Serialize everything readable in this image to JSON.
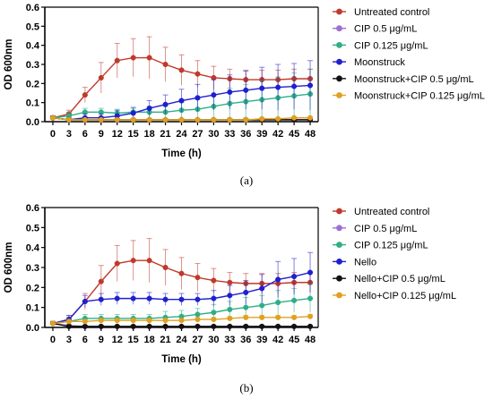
{
  "colors": {
    "untreated": "#c0392b",
    "cip05": "#a070d0",
    "cip0125": "#2fae86",
    "phage": "#1f1fd0",
    "phage_cip05": "#111111",
    "phage_cip0125": "#e0a020"
  },
  "chart_data": [
    {
      "type": "line",
      "panel_label": "(a)",
      "xlabel": "Time (h)",
      "ylabel": "OD 600nm",
      "x": [
        0,
        3,
        6,
        9,
        12,
        15,
        18,
        21,
        24,
        27,
        30,
        33,
        36,
        39,
        42,
        45,
        48
      ],
      "xlim": [
        -1.5,
        49.5
      ],
      "ylim": [
        0,
        0.6
      ],
      "yticks": [
        0,
        0.1,
        0.2,
        0.3,
        0.4,
        0.5,
        0.6
      ],
      "ytick_labels": [
        "0.0",
        "0.1",
        "0.2",
        "0.3",
        "0.4",
        "0.5",
        "0.6"
      ],
      "grid": false,
      "legend": "right",
      "series": [
        {
          "name": "Untreated control",
          "color_key": "untreated",
          "values": [
            0.02,
            0.04,
            0.14,
            0.23,
            0.32,
            0.335,
            0.335,
            0.3,
            0.27,
            0.25,
            0.23,
            0.225,
            0.22,
            0.22,
            0.22,
            0.225,
            0.225
          ],
          "errors": [
            0.01,
            0.02,
            0.04,
            0.08,
            0.09,
            0.1,
            0.11,
            0.09,
            0.08,
            0.07,
            0.06,
            0.05,
            0.05,
            0.05,
            0.05,
            0.05,
            0.05
          ]
        },
        {
          "name": "CIP 0.5 μg/mL",
          "color_key": "cip05",
          "values": [
            0.02,
            0.01,
            0.01,
            0.01,
            0.01,
            0.01,
            0.01,
            0.01,
            0.01,
            0.01,
            0.01,
            0.01,
            0.01,
            0.01,
            0.01,
            0.01,
            0.01
          ],
          "errors": [
            0.005,
            0.005,
            0.005,
            0.005,
            0.005,
            0.005,
            0.005,
            0.005,
            0.005,
            0.005,
            0.005,
            0.005,
            0.005,
            0.005,
            0.005,
            0.005,
            0.005
          ]
        },
        {
          "name": "CIP 0.125 μg/mL",
          "color_key": "cip0125",
          "values": [
            0.02,
            0.03,
            0.05,
            0.05,
            0.045,
            0.05,
            0.05,
            0.05,
            0.06,
            0.065,
            0.08,
            0.095,
            0.105,
            0.115,
            0.125,
            0.135,
            0.145
          ],
          "errors": [
            0.01,
            0.02,
            0.02,
            0.02,
            0.02,
            0.02,
            0.03,
            0.03,
            0.04,
            0.05,
            0.06,
            0.08,
            0.09,
            0.1,
            0.11,
            0.12,
            0.13
          ]
        },
        {
          "name": "Moonstruck",
          "color_key": "phage",
          "values": [
            0.02,
            0.01,
            0.02,
            0.02,
            0.03,
            0.045,
            0.07,
            0.09,
            0.11,
            0.125,
            0.14,
            0.155,
            0.165,
            0.175,
            0.18,
            0.185,
            0.19
          ],
          "errors": [
            0.01,
            0.01,
            0.02,
            0.02,
            0.03,
            0.03,
            0.04,
            0.05,
            0.06,
            0.07,
            0.08,
            0.09,
            0.1,
            0.11,
            0.12,
            0.12,
            0.13
          ]
        },
        {
          "name": "Moonstruck+CIP 0.5 μg/mL",
          "color_key": "phage_cip05",
          "values": [
            0.02,
            0.01,
            0.01,
            0.01,
            0.01,
            0.01,
            0.01,
            0.01,
            0.01,
            0.01,
            0.01,
            0.01,
            0.01,
            0.01,
            0.01,
            0.01,
            0.01
          ],
          "errors": [
            0.005,
            0.005,
            0.005,
            0.005,
            0.005,
            0.005,
            0.005,
            0.005,
            0.005,
            0.005,
            0.005,
            0.005,
            0.005,
            0.005,
            0.005,
            0.005,
            0.005
          ]
        },
        {
          "name": "Moonstruck+CIP 0.125 μg/mL",
          "color_key": "phage_cip0125",
          "values": [
            0.02,
            0.01,
            0.01,
            0.01,
            0.01,
            0.01,
            0.01,
            0.01,
            0.01,
            0.01,
            0.01,
            0.01,
            0.01,
            0.015,
            0.015,
            0.02,
            0.02
          ],
          "errors": [
            0.005,
            0.005,
            0.005,
            0.005,
            0.005,
            0.005,
            0.005,
            0.005,
            0.005,
            0.005,
            0.005,
            0.005,
            0.005,
            0.005,
            0.005,
            0.005,
            0.005
          ]
        }
      ]
    },
    {
      "type": "line",
      "panel_label": "(b)",
      "xlabel": "Time (h)",
      "ylabel": "OD 600nm",
      "x": [
        0,
        3,
        6,
        9,
        12,
        15,
        18,
        21,
        24,
        27,
        30,
        33,
        36,
        39,
        42,
        45,
        48
      ],
      "xlim": [
        -1.5,
        49.5
      ],
      "ylim": [
        0,
        0.6
      ],
      "yticks": [
        0,
        0.1,
        0.2,
        0.3,
        0.4,
        0.5,
        0.6
      ],
      "ytick_labels": [
        "0.0",
        "0.1",
        "0.2",
        "0.3",
        "0.4",
        "0.5",
        "0.6"
      ],
      "grid": false,
      "legend": "right",
      "series": [
        {
          "name": "Untreated control",
          "color_key": "untreated",
          "values": [
            0.02,
            0.04,
            0.13,
            0.23,
            0.32,
            0.335,
            0.335,
            0.3,
            0.27,
            0.25,
            0.235,
            0.225,
            0.22,
            0.22,
            0.22,
            0.225,
            0.225
          ],
          "errors": [
            0.01,
            0.02,
            0.04,
            0.08,
            0.09,
            0.1,
            0.11,
            0.09,
            0.08,
            0.07,
            0.06,
            0.05,
            0.05,
            0.05,
            0.05,
            0.05,
            0.05
          ]
        },
        {
          "name": "CIP 0.5 μg/mL",
          "color_key": "cip05",
          "values": [
            0.02,
            0.01,
            0.005,
            0.005,
            0.005,
            0.005,
            0.005,
            0.005,
            0.005,
            0.005,
            0.005,
            0.005,
            0.005,
            0.005,
            0.005,
            0.005,
            0.005
          ],
          "errors": [
            0.005,
            0.005,
            0.005,
            0.005,
            0.005,
            0.005,
            0.005,
            0.005,
            0.005,
            0.005,
            0.005,
            0.005,
            0.005,
            0.005,
            0.005,
            0.005,
            0.005
          ]
        },
        {
          "name": "CIP 0.125 μg/mL",
          "color_key": "cip0125",
          "values": [
            0.02,
            0.03,
            0.045,
            0.045,
            0.045,
            0.045,
            0.045,
            0.05,
            0.055,
            0.065,
            0.075,
            0.09,
            0.1,
            0.11,
            0.125,
            0.135,
            0.145
          ],
          "errors": [
            0.01,
            0.02,
            0.02,
            0.02,
            0.02,
            0.02,
            0.02,
            0.03,
            0.03,
            0.03,
            0.04,
            0.04,
            0.05,
            0.05,
            0.06,
            0.06,
            0.07
          ]
        },
        {
          "name": "Nello",
          "color_key": "phage",
          "values": [
            0.02,
            0.04,
            0.13,
            0.14,
            0.145,
            0.145,
            0.145,
            0.14,
            0.14,
            0.14,
            0.145,
            0.16,
            0.175,
            0.195,
            0.24,
            0.255,
            0.275
          ],
          "errors": [
            0.01,
            0.02,
            0.03,
            0.03,
            0.03,
            0.03,
            0.03,
            0.03,
            0.03,
            0.03,
            0.04,
            0.05,
            0.06,
            0.07,
            0.09,
            0.09,
            0.1
          ]
        },
        {
          "name": "Nello+CIP 0.5 μg/mL",
          "color_key": "phage_cip05",
          "values": [
            0.02,
            0.005,
            0.005,
            0.005,
            0.005,
            0.005,
            0.005,
            0.005,
            0.005,
            0.005,
            0.005,
            0.005,
            0.005,
            0.005,
            0.005,
            0.005,
            0.005
          ],
          "errors": [
            0.005,
            0.005,
            0.005,
            0.005,
            0.005,
            0.005,
            0.005,
            0.005,
            0.005,
            0.005,
            0.005,
            0.005,
            0.005,
            0.005,
            0.005,
            0.005,
            0.005
          ]
        },
        {
          "name": "Nello+CIP 0.125 μg/mL",
          "color_key": "phage_cip0125",
          "values": [
            0.02,
            0.03,
            0.03,
            0.035,
            0.035,
            0.035,
            0.035,
            0.035,
            0.035,
            0.04,
            0.04,
            0.045,
            0.05,
            0.05,
            0.05,
            0.05,
            0.055
          ],
          "errors": [
            0.01,
            0.01,
            0.01,
            0.01,
            0.01,
            0.01,
            0.01,
            0.01,
            0.01,
            0.01,
            0.01,
            0.01,
            0.01,
            0.01,
            0.01,
            0.01,
            0.01
          ]
        }
      ]
    }
  ]
}
